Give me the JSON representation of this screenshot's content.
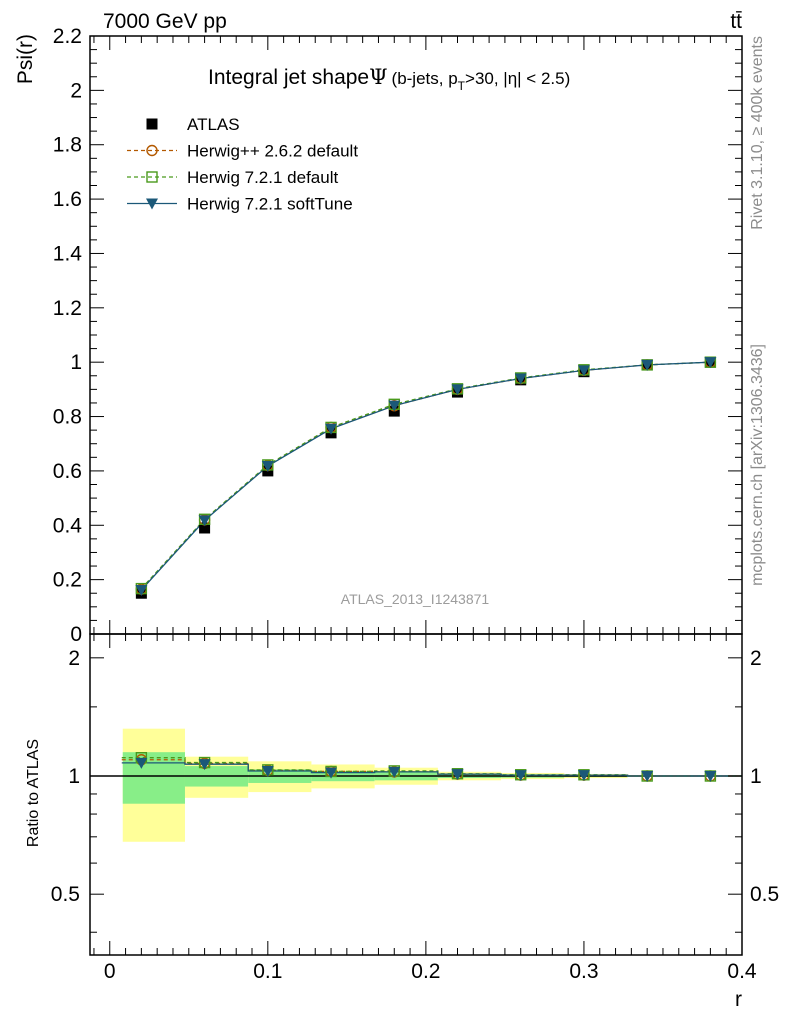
{
  "header": {
    "energy": "7000 GeV pp",
    "process": "tt̄",
    "side_top": "Rivet 3.1.10, ≥ 400k events",
    "side_bottom": "mcplots.cern.ch [arXiv:1306.3436]",
    "analysis": "ATLAS_2013_I1243871"
  },
  "chart_data": {
    "type": "line",
    "title_main": "Integral jet shape",
    "title_sym": "Ψ",
    "title_sub": "(b-jets, p",
    "title_sub_T": "T",
    "title_sub_end": ">30, |η| < 2.5)",
    "ylabel": "Psi(r)",
    "ratio_ylabel": "Ratio to ATLAS",
    "xlabel": "r",
    "xlim": [
      -0.0125,
      0.4
    ],
    "ylim": [
      0,
      2.2
    ],
    "ratio_ylim": [
      0.35,
      2.3
    ],
    "x_ticks": [
      "0",
      "0.1",
      "0.2",
      "0.3",
      "0.4"
    ],
    "x_tick_values": [
      0,
      0.1,
      0.2,
      0.3,
      0.4
    ],
    "y_ticks": [
      "0",
      "0.2",
      "0.4",
      "0.6",
      "0.8",
      "1",
      "1.2",
      "1.4",
      "1.6",
      "1.8",
      "2",
      "2.2"
    ],
    "y_tick_values": [
      0,
      0.2,
      0.4,
      0.6,
      0.8,
      1,
      1.2,
      1.4,
      1.6,
      1.8,
      2,
      2.2
    ],
    "ratio_ticks": [
      "0.5",
      "1",
      "2"
    ],
    "ratio_tick_values": [
      0.5,
      1,
      2
    ],
    "x": [
      0.02,
      0.06,
      0.1,
      0.14,
      0.18,
      0.22,
      0.26,
      0.3,
      0.34,
      0.38
    ],
    "bin_edges": [
      0,
      0.04,
      0.08,
      0.12,
      0.16,
      0.2,
      0.24,
      0.28,
      0.32,
      0.36,
      0.4
    ],
    "band_inner": [
      0.15,
      0.06,
      0.04,
      0.03,
      0.025,
      0.012,
      0.01,
      0.006,
      0.003,
      0.001
    ],
    "band_outer": [
      0.32,
      0.12,
      0.09,
      0.07,
      0.05,
      0.025,
      0.018,
      0.012,
      0.005,
      0.002
    ],
    "series": [
      {
        "name": "ATLAS",
        "values": [
          0.15,
          0.39,
          0.6,
          0.74,
          0.82,
          0.89,
          0.935,
          0.965,
          0.99,
          1.0
        ],
        "color": "#000000",
        "marker": "square"
      },
      {
        "name": "Herwig++ 2.6.2 default",
        "values": [
          0.165,
          0.42,
          0.62,
          0.76,
          0.84,
          0.9,
          0.94,
          0.97,
          0.99,
          1.0
        ],
        "color": "#b35900",
        "marker": "circle"
      },
      {
        "name": "Herwig 7.2.1 default",
        "values": [
          0.167,
          0.422,
          0.622,
          0.76,
          0.845,
          0.902,
          0.942,
          0.972,
          0.99,
          1.0
        ],
        "color": "#4a9a1c",
        "marker": "square-open"
      },
      {
        "name": "Herwig 7.2.1 softTune",
        "values": [
          0.162,
          0.418,
          0.618,
          0.755,
          0.84,
          0.9,
          0.94,
          0.97,
          0.99,
          1.0
        ],
        "color": "#1b5878",
        "marker": "triangle-down"
      }
    ]
  }
}
